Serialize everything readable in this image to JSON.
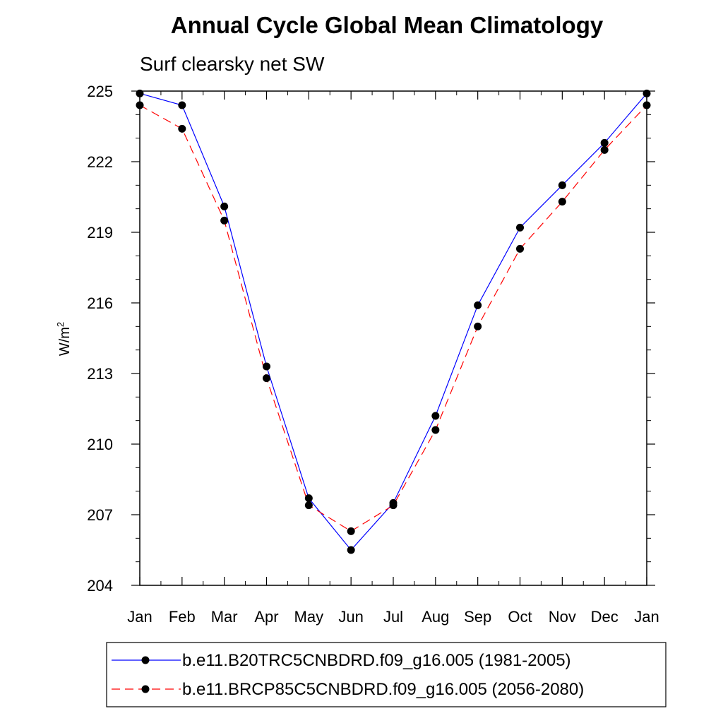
{
  "chart_data": {
    "type": "line",
    "title": "Annual Cycle Global Mean Climatology",
    "subtitle": "Surf clearsky net SW",
    "ylabel": "W/m",
    "ylabel_sup": "2",
    "xlabel": "",
    "categories": [
      "Jan",
      "Feb",
      "Mar",
      "Apr",
      "May",
      "Jun",
      "Jul",
      "Aug",
      "Sep",
      "Oct",
      "Nov",
      "Dec",
      "Jan"
    ],
    "ylim": [
      204,
      225
    ],
    "yticks": [
      204,
      207,
      210,
      213,
      216,
      219,
      222,
      225
    ],
    "series": [
      {
        "name": "b.e11.B20TRC5CNBDRD.f09_g16.005 (1981-2005)",
        "color": "#0000ff",
        "dash": "solid",
        "values": [
          224.9,
          224.4,
          220.1,
          213.3,
          207.7,
          205.5,
          207.5,
          211.2,
          215.9,
          219.2,
          221.0,
          222.8,
          224.9
        ]
      },
      {
        "name": "b.e11.BRCP85C5CNBDRD.f09_g16.005 (2056-2080)",
        "color": "#ff0000",
        "dash": "dashed",
        "values": [
          224.4,
          223.4,
          219.5,
          212.8,
          207.4,
          206.3,
          207.4,
          210.6,
          215.0,
          218.3,
          220.3,
          222.5,
          224.4
        ]
      }
    ]
  }
}
